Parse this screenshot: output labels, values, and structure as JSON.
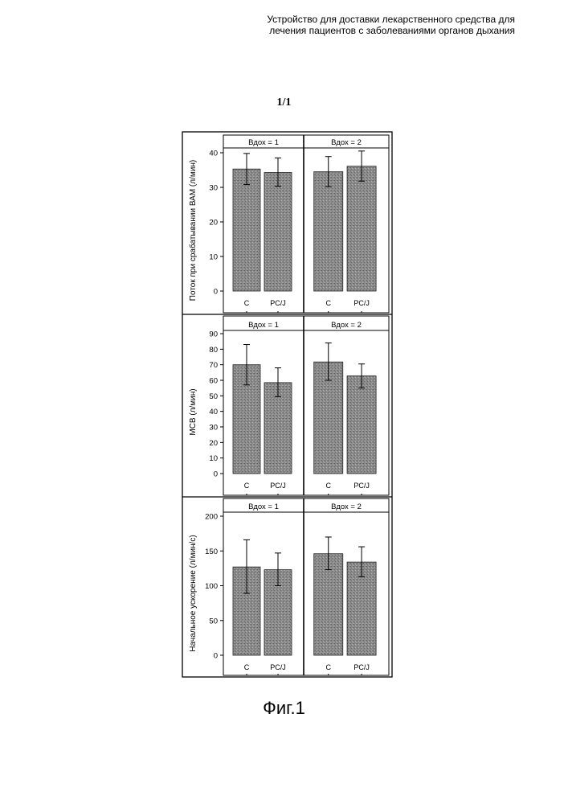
{
  "header": {
    "line1": "Устройство для  доставки лекарственного средства для",
    "line2": "лечения пациентов с заболеваниями органов дыхания"
  },
  "sheet_label": "1/1",
  "caption": "Фиг.1",
  "chart_data": [
    {
      "type": "bar",
      "ylabel": "Поток при срабатывании ВАМ (л/мин)",
      "ylim": [
        0,
        40
      ],
      "yticks": [
        0,
        10,
        20,
        30,
        40
      ],
      "categories": [
        "C",
        "PC/J"
      ],
      "panels": [
        {
          "label": "Вдох   = 1",
          "values": [
            35.3,
            34.3
          ],
          "error_low": [
            30.8,
            30.3
          ],
          "error_high": [
            39.8,
            38.5
          ]
        },
        {
          "label": "Вдох   = 2",
          "values": [
            34.5,
            36.1
          ],
          "error_low": [
            30.2,
            31.8
          ],
          "error_high": [
            38.9,
            40.5
          ]
        }
      ]
    },
    {
      "type": "bar",
      "ylabel": "МСВ (л/мин)",
      "ylim": [
        0,
        90
      ],
      "yticks": [
        0,
        10,
        20,
        30,
        40,
        50,
        60,
        70,
        80,
        90
      ],
      "categories": [
        "C",
        "PC/J"
      ],
      "panels": [
        {
          "label": "Вдох  = 1",
          "values": [
            70,
            58.5
          ],
          "error_low": [
            57,
            49.5
          ],
          "error_high": [
            83,
            68
          ]
        },
        {
          "label": "Вдох  = 2",
          "values": [
            71.8,
            62.8
          ],
          "error_low": [
            60,
            55
          ],
          "error_high": [
            84,
            70.5
          ]
        }
      ]
    },
    {
      "type": "bar",
      "ylabel": "Начальное ускорение (л/мин/с)",
      "ylim": [
        0,
        200
      ],
      "yticks": [
        0,
        50,
        100,
        150,
        200
      ],
      "categories": [
        "C",
        "PC/J"
      ],
      "panels": [
        {
          "label": "Вдох = 1",
          "values": [
            127,
            123
          ],
          "error_low": [
            89,
            100
          ],
          "error_high": [
            166,
            147
          ]
        },
        {
          "label": "Вдох = 2",
          "values": [
            146,
            134
          ],
          "error_low": [
            123,
            113
          ],
          "error_high": [
            170,
            156
          ]
        }
      ]
    }
  ]
}
